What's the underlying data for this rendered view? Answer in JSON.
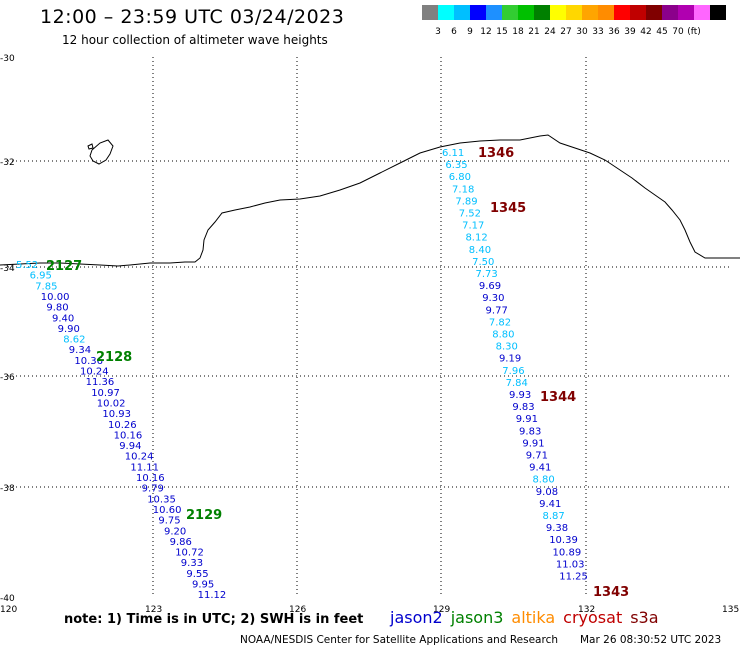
{
  "header": {
    "title": "12:00 – 23:59 UTC 03/24/2023",
    "subtitle": "12 hour collection of altimeter wave heights"
  },
  "scale": {
    "colors": [
      "#808080",
      "#00ffff",
      "#00bfff",
      "#0000ff",
      "#1e90ff",
      "#32cd32",
      "#00c000",
      "#008000",
      "#ffff00",
      "#ffd700",
      "#ffa500",
      "#ff8c00",
      "#ff0000",
      "#c00000",
      "#800000",
      "#8b008b",
      "#b000b0",
      "#ff66ff",
      "#000000"
    ],
    "labels": [
      "3",
      "6",
      "9",
      "12",
      "15",
      "18",
      "21",
      "24",
      "27",
      "30",
      "33",
      "36",
      "39",
      "42",
      "45",
      "70",
      "(ft)"
    ]
  },
  "axes": {
    "lat_labels": [
      "-30",
      "-32",
      "-34",
      "-36",
      "-38",
      "-40"
    ],
    "lon_labels": [
      "120",
      "123",
      "126",
      "129",
      "132",
      "135"
    ]
  },
  "tracks": {
    "west": {
      "times": [
        {
          "label": "2127",
          "color": "#008000"
        },
        {
          "label": "2128",
          "color": "#008000"
        },
        {
          "label": "2129",
          "color": "#008000"
        }
      ],
      "points": [
        {
          "v": "5.52",
          "c": "#00bfff"
        },
        {
          "v": "6.95",
          "c": "#00bfff"
        },
        {
          "v": "7.85",
          "c": "#00bfff"
        },
        {
          "v": "10.00",
          "c": "#0000cd"
        },
        {
          "v": "9.80",
          "c": "#0000cd"
        },
        {
          "v": "9.40",
          "c": "#0000cd"
        },
        {
          "v": "9.90",
          "c": "#0000cd"
        },
        {
          "v": "8.62",
          "c": "#00bfff"
        },
        {
          "v": "9.34",
          "c": "#0000cd"
        },
        {
          "v": "10.36",
          "c": "#0000cd"
        },
        {
          "v": "10.24",
          "c": "#0000cd"
        },
        {
          "v": "11.36",
          "c": "#0000cd"
        },
        {
          "v": "10.97",
          "c": "#0000cd"
        },
        {
          "v": "10.02",
          "c": "#0000cd"
        },
        {
          "v": "10.93",
          "c": "#0000cd"
        },
        {
          "v": "10.26",
          "c": "#0000cd"
        },
        {
          "v": "10.16",
          "c": "#0000cd"
        },
        {
          "v": "9.94",
          "c": "#0000cd"
        },
        {
          "v": "10.24",
          "c": "#0000cd"
        },
        {
          "v": "11.11",
          "c": "#0000cd"
        },
        {
          "v": "10.16",
          "c": "#0000cd"
        },
        {
          "v": "9.79",
          "c": "#0000cd"
        },
        {
          "v": "10.35",
          "c": "#0000cd"
        },
        {
          "v": "10.60",
          "c": "#0000cd"
        },
        {
          "v": "9.75",
          "c": "#0000cd"
        },
        {
          "v": "9.20",
          "c": "#0000cd"
        },
        {
          "v": "9.86",
          "c": "#0000cd"
        },
        {
          "v": "10.72",
          "c": "#0000cd"
        },
        {
          "v": "9.33",
          "c": "#0000cd"
        },
        {
          "v": "9.55",
          "c": "#0000cd"
        },
        {
          "v": "9.95",
          "c": "#0000cd"
        },
        {
          "v": "11.12",
          "c": "#0000cd"
        }
      ]
    },
    "east": {
      "times": [
        {
          "label": "1346",
          "color": "#800000"
        },
        {
          "label": "1345",
          "color": "#800000"
        },
        {
          "label": "1344",
          "color": "#800000"
        },
        {
          "label": "1343",
          "color": "#800000"
        }
      ],
      "points": [
        {
          "v": "6.11",
          "c": "#00bfff"
        },
        {
          "v": "6.35",
          "c": "#00bfff"
        },
        {
          "v": "6.80",
          "c": "#00bfff"
        },
        {
          "v": "7.18",
          "c": "#00bfff"
        },
        {
          "v": "7.89",
          "c": "#00bfff"
        },
        {
          "v": "7.52",
          "c": "#00bfff"
        },
        {
          "v": "7.17",
          "c": "#00bfff"
        },
        {
          "v": "8.12",
          "c": "#00bfff"
        },
        {
          "v": "8.40",
          "c": "#00bfff"
        },
        {
          "v": "7.50",
          "c": "#00bfff"
        },
        {
          "v": "7.73",
          "c": "#00bfff"
        },
        {
          "v": "9.69",
          "c": "#0000cd"
        },
        {
          "v": "9.30",
          "c": "#0000cd"
        },
        {
          "v": "9.77",
          "c": "#0000cd"
        },
        {
          "v": "7.82",
          "c": "#00bfff"
        },
        {
          "v": "8.80",
          "c": "#00bfff"
        },
        {
          "v": "8.30",
          "c": "#00bfff"
        },
        {
          "v": "9.19",
          "c": "#0000cd"
        },
        {
          "v": "7.96",
          "c": "#00bfff"
        },
        {
          "v": "7.84",
          "c": "#00bfff"
        },
        {
          "v": "9.93",
          "c": "#0000cd"
        },
        {
          "v": "9.83",
          "c": "#0000cd"
        },
        {
          "v": "9.91",
          "c": "#0000cd"
        },
        {
          "v": "9.83",
          "c": "#0000cd"
        },
        {
          "v": "9.91",
          "c": "#0000cd"
        },
        {
          "v": "9.71",
          "c": "#0000cd"
        },
        {
          "v": "9.41",
          "c": "#0000cd"
        },
        {
          "v": "8.80",
          "c": "#00bfff"
        },
        {
          "v": "9.08",
          "c": "#0000cd"
        },
        {
          "v": "9.41",
          "c": "#0000cd"
        },
        {
          "v": "8.87",
          "c": "#00bfff"
        },
        {
          "v": "9.38",
          "c": "#0000cd"
        },
        {
          "v": "10.39",
          "c": "#0000cd"
        },
        {
          "v": "10.89",
          "c": "#0000cd"
        },
        {
          "v": "11.03",
          "c": "#0000cd"
        },
        {
          "v": "11.25",
          "c": "#0000cd"
        }
      ]
    }
  },
  "footer": {
    "note": "note: 1) Time is in UTC; 2) SWH is in feet",
    "satellites": [
      {
        "name": "jason2",
        "color": "#0000cd"
      },
      {
        "name": "jason3",
        "color": "#008000"
      },
      {
        "name": "altika",
        "color": "#ff8c00"
      },
      {
        "name": "cryosat",
        "color": "#c00000"
      },
      {
        "name": "s3a",
        "color": "#800000"
      }
    ],
    "credit": "NOAA/NESDIS Center for Satellite Applications and Research",
    "timestamp": "Mar 26 08:30:52 UTC 2023"
  }
}
